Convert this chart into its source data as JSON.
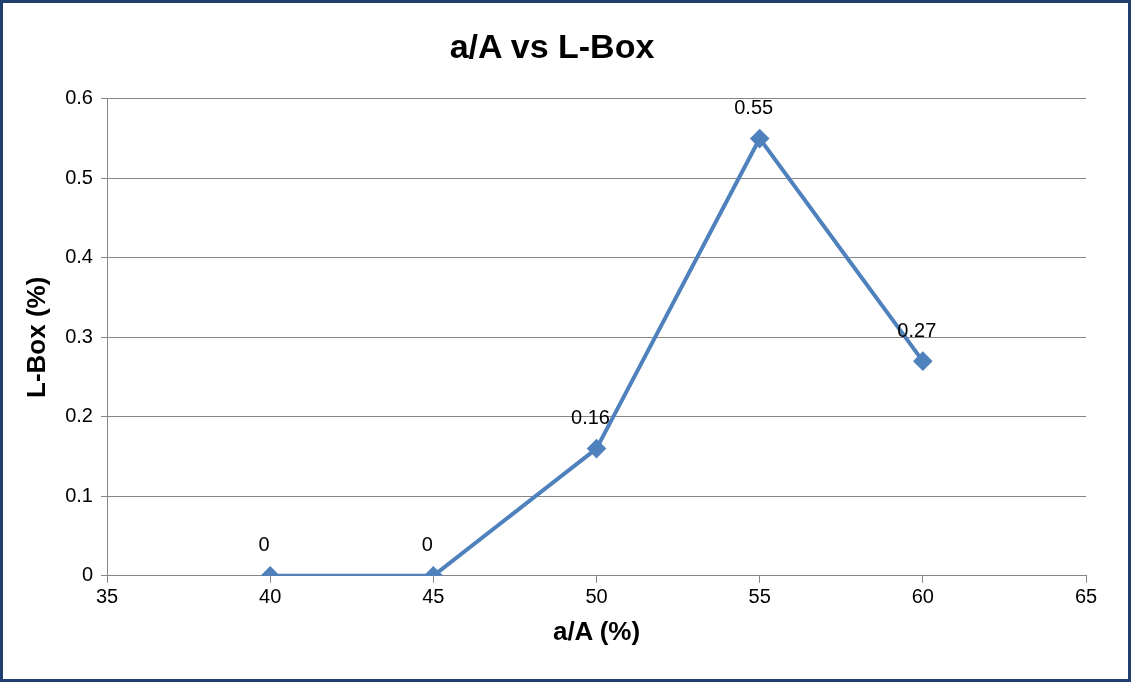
{
  "chart_data": {
    "type": "line",
    "title": "a/A vs L-Box",
    "xlabel": "a/A (%)",
    "ylabel": "L-Box (%)",
    "x": [
      40,
      45,
      50,
      55,
      60
    ],
    "series": [
      {
        "color": "#4f81bd",
        "values": [
          0,
          0,
          0.16,
          0.55,
          0.27
        ]
      }
    ],
    "xlim": [
      35,
      65
    ],
    "xticks": [
      35,
      40,
      45,
      50,
      55,
      60,
      65
    ],
    "ylim": [
      0,
      0.6
    ],
    "yticks": [
      0,
      0.1,
      0.2,
      0.3,
      0.4,
      0.5,
      0.6
    ],
    "grid": "y",
    "legend": false,
    "marker": "diamond",
    "line_style": "solid",
    "data_labels": true
  }
}
